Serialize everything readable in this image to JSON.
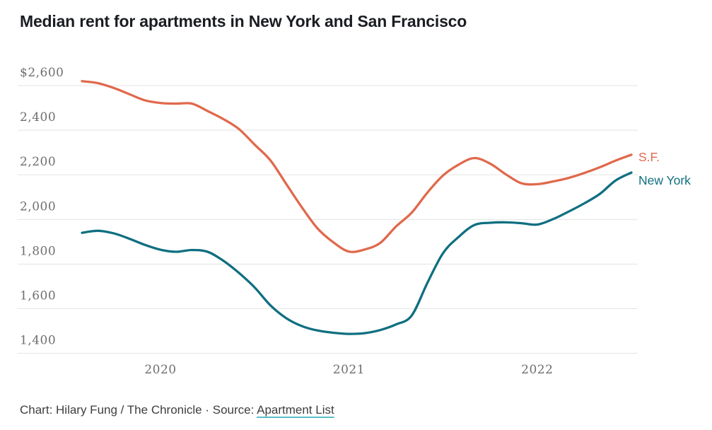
{
  "title": "Median rent for apartments in New York and San Francisco",
  "footer": {
    "prefix": "Chart: Hilary Fung / The Chronicle · Source: ",
    "link_label": "Apartment List"
  },
  "chart_data": {
    "type": "line",
    "title": "Median rent for apartments in New York and San Francisco",
    "x_unit": "month",
    "x": [
      "2019-08",
      "2019-09",
      "2019-10",
      "2019-11",
      "2019-12",
      "2020-01",
      "2020-02",
      "2020-03",
      "2020-04",
      "2020-05",
      "2020-06",
      "2020-07",
      "2020-08",
      "2020-09",
      "2020-10",
      "2020-11",
      "2020-12",
      "2021-01",
      "2021-02",
      "2021-03",
      "2021-04",
      "2021-05",
      "2021-06",
      "2021-07",
      "2021-08",
      "2021-09",
      "2021-10",
      "2021-11",
      "2021-12",
      "2022-01",
      "2022-02",
      "2022-03",
      "2022-04",
      "2022-05",
      "2022-06",
      "2022-07"
    ],
    "series": [
      {
        "name": "S.F.",
        "color": "#E0694C",
        "values": [
          2620,
          2611,
          2590,
          2562,
          2534,
          2522,
          2519,
          2519,
          2486,
          2450,
          2405,
          2335,
          2265,
          2160,
          2055,
          1960,
          1898,
          1856,
          1865,
          1895,
          1968,
          2030,
          2120,
          2197,
          2246,
          2275,
          2250,
          2202,
          2162,
          2158,
          2170,
          2186,
          2208,
          2234,
          2264,
          2290
        ]
      },
      {
        "name": "New York",
        "color": "#0F6F80",
        "values": [
          1940,
          1949,
          1938,
          1914,
          1886,
          1864,
          1855,
          1863,
          1855,
          1815,
          1760,
          1695,
          1615,
          1558,
          1522,
          1502,
          1492,
          1487,
          1490,
          1504,
          1529,
          1569,
          1715,
          1849,
          1922,
          1975,
          1985,
          1987,
          1983,
          1977,
          2001,
          2035,
          2072,
          2115,
          2175,
          2210
        ]
      }
    ],
    "y_ticks": [
      {
        "value": 2600,
        "label": "$2,600"
      },
      {
        "value": 2400,
        "label": "2,400"
      },
      {
        "value": 2200,
        "label": "2,200"
      },
      {
        "value": 2000,
        "label": "2,000"
      },
      {
        "value": 1800,
        "label": "1,800"
      },
      {
        "value": 1600,
        "label": "1,600"
      },
      {
        "value": 1400,
        "label": "1,400"
      }
    ],
    "x_ticks": [
      {
        "month": "2020-01",
        "label": "2020"
      },
      {
        "month": "2021-01",
        "label": "2021"
      },
      {
        "month": "2022-01",
        "label": "2022"
      }
    ],
    "ylim": [
      1400,
      2600
    ],
    "grid": "horizontal",
    "legend_position": "right-of-line-ends"
  },
  "colors": {
    "background": "#FFFFFF",
    "gridline": "#E3E3E3",
    "tick_text": "#6F6F6F",
    "title_text": "#1A1D22",
    "footer_text": "#3E3E3E",
    "link_underline": "#5ABFC9",
    "sf_line": "#E0694C",
    "ny_line": "#0F6F80"
  }
}
